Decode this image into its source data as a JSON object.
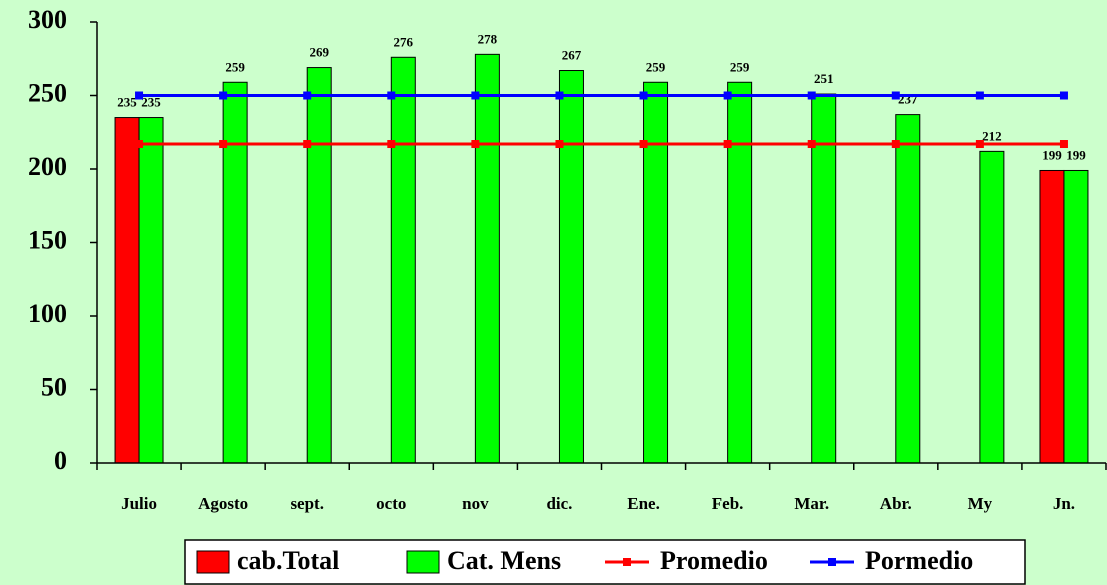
{
  "chart_data": {
    "type": "bar-line",
    "categories": [
      "Julio",
      "Agosto",
      "sept.",
      "octo",
      "nov",
      "dic.",
      "Ene.",
      "Feb.",
      "Mar.",
      "Abr.",
      "My",
      "Jn."
    ],
    "series": [
      {
        "name": "cab.Total",
        "type": "bar",
        "color": "#ff0000",
        "values": [
          235,
          null,
          null,
          null,
          null,
          null,
          null,
          null,
          null,
          null,
          null,
          199
        ]
      },
      {
        "name": "Cat. Mens",
        "type": "bar",
        "color": "#00ff00",
        "values": [
          235,
          259,
          269,
          276,
          278,
          267,
          259,
          259,
          251,
          237,
          212,
          199
        ]
      },
      {
        "name": "Promedio",
        "type": "line",
        "color": "#ff0000",
        "values": [
          217,
          217,
          217,
          217,
          217,
          217,
          217,
          217,
          217,
          217,
          217,
          217
        ]
      },
      {
        "name": "Pormedio",
        "type": "line",
        "color": "#0000ff",
        "values": [
          250,
          250,
          250,
          250,
          250,
          250,
          250,
          250,
          250,
          250,
          250,
          250
        ]
      }
    ],
    "ylim": [
      0,
      300
    ],
    "yticks": [
      0,
      50,
      100,
      150,
      200,
      250,
      300
    ],
    "grid": false,
    "legend": "bottom"
  }
}
